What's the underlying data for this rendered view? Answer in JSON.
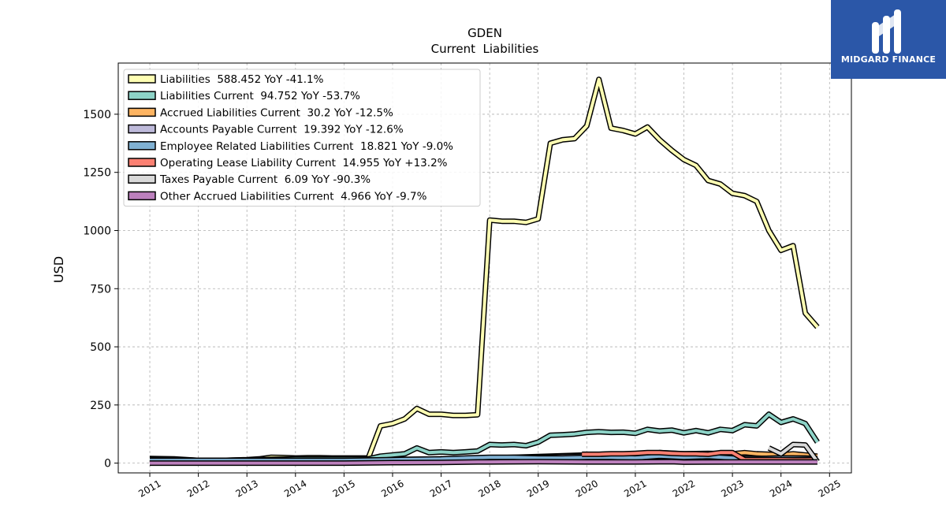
{
  "brand": {
    "name": "MIDGARD FINANCE"
  },
  "chart_data": {
    "type": "line",
    "title": "GDEN",
    "subtitle": "Current  Liabilities",
    "xlabel": "",
    "ylabel": "USD",
    "xlim": [
      2010.35,
      2025.45
    ],
    "ylim": [
      -42,
      1720
    ],
    "yticks": [
      0,
      250,
      500,
      750,
      1000,
      1250,
      1500
    ],
    "xticks": [
      "2011",
      "2012",
      "2013",
      "2014",
      "2015",
      "2016",
      "2017",
      "2018",
      "2019",
      "2020",
      "2021",
      "2022",
      "2023",
      "2024",
      "2025"
    ],
    "grid": true,
    "legend_position": "upper-left",
    "series": [
      {
        "name": "Liabilities",
        "legend_label": "Liabilities  588.452 YoY -41.1%",
        "color": "#ffffb3",
        "x": [
          2011.0,
          2011.5,
          2012.0,
          2012.5,
          2013.0,
          2013.25,
          2013.5,
          2013.75,
          2014.0,
          2014.25,
          2014.5,
          2014.75,
          2015.0,
          2015.25,
          2015.5,
          2015.75,
          2016.0,
          2016.25,
          2016.5,
          2016.75,
          2017.0,
          2017.25,
          2017.5,
          2017.75,
          2018.0,
          2018.25,
          2018.5,
          2018.75,
          2019.0,
          2019.25,
          2019.5,
          2019.75,
          2020.0,
          2020.25,
          2020.5,
          2020.75,
          2021.0,
          2021.25,
          2021.5,
          2021.75,
          2022.0,
          2022.25,
          2022.5,
          2022.75,
          2023.0,
          2023.25,
          2023.5,
          2023.75,
          2024.0,
          2024.25,
          2024.5,
          2024.75
        ],
        "y": [
          20,
          18,
          12,
          12,
          15,
          18,
          25,
          24,
          22,
          23,
          23,
          22,
          22,
          22,
          22,
          160,
          170,
          190,
          235,
          210,
          210,
          205,
          205,
          208,
          1045,
          1040,
          1040,
          1035,
          1050,
          1375,
          1390,
          1395,
          1450,
          1650,
          1440,
          1430,
          1415,
          1445,
          1390,
          1345,
          1305,
          1280,
          1215,
          1200,
          1160,
          1150,
          1125,
          1000,
          915,
          935,
          645,
          585
        ]
      },
      {
        "name": "Liabilities Current",
        "legend_label": "Liabilities Current  94.752 YoY -53.7%",
        "color": "#8dd3c7",
        "x": [
          2011.0,
          2011.5,
          2012.0,
          2012.5,
          2013.0,
          2013.5,
          2014.0,
          2014.5,
          2015.0,
          2015.5,
          2015.75,
          2016.0,
          2016.25,
          2016.5,
          2016.75,
          2017.0,
          2017.25,
          2017.5,
          2017.75,
          2018.0,
          2018.25,
          2018.5,
          2018.75,
          2019.0,
          2019.25,
          2019.5,
          2019.75,
          2020.0,
          2020.25,
          2020.5,
          2020.75,
          2021.0,
          2021.25,
          2021.5,
          2021.75,
          2022.0,
          2022.25,
          2022.5,
          2022.75,
          2023.0,
          2023.25,
          2023.5,
          2023.75,
          2024.0,
          2024.25,
          2024.5,
          2024.75
        ],
        "y": [
          18,
          16,
          12,
          12,
          14,
          16,
          18,
          18,
          18,
          18,
          30,
          35,
          40,
          65,
          45,
          48,
          45,
          48,
          52,
          80,
          78,
          80,
          75,
          90,
          120,
          122,
          125,
          132,
          135,
          132,
          133,
          128,
          145,
          138,
          142,
          130,
          140,
          130,
          145,
          140,
          165,
          160,
          210,
          175,
          190,
          170,
          90
        ]
      },
      {
        "name": "Accrued Liabilities Current",
        "legend_label": "Accrued Liabilities Current  30.2 YoY -12.5%",
        "color": "#fdb462",
        "x": [
          2011.0,
          2012.0,
          2013.0,
          2014.0,
          2015.0,
          2016.0,
          2017.0,
          2018.0,
          2019.0,
          2019.5,
          2020.0,
          2020.5,
          2021.0,
          2021.5,
          2022.0,
          2022.5,
          2023.0,
          2023.25,
          2023.5,
          2023.75,
          2024.0,
          2024.25,
          2024.5,
          2024.75
        ],
        "y": [
          15,
          10,
          12,
          12,
          12,
          15,
          18,
          22,
          28,
          32,
          35,
          38,
          35,
          45,
          40,
          42,
          40,
          45,
          40,
          38,
          35,
          40,
          35,
          30
        ]
      },
      {
        "name": "Accounts Payable Current",
        "legend_label": "Accounts Payable Current  19.392 YoY -12.6%",
        "color": "#bebada",
        "x": [
          2011.0,
          2012.0,
          2013.0,
          2014.0,
          2015.0,
          2016.0,
          2017.0,
          2018.0,
          2019.0,
          2019.5,
          2020.0,
          2020.5,
          2021.0,
          2021.5,
          2022.0,
          2022.5,
          2023.0,
          2023.5,
          2024.0,
          2024.5,
          2024.75
        ],
        "y": [
          10,
          8,
          8,
          8,
          8,
          10,
          12,
          15,
          25,
          28,
          30,
          28,
          25,
          30,
          28,
          25,
          22,
          20,
          22,
          22,
          19
        ]
      },
      {
        "name": "Employee Related Liabilities Current",
        "legend_label": "Employee Related Liabilities Current  18.821 YoY -9.0%",
        "color": "#80b1d3",
        "x": [
          2011.0,
          2012.0,
          2013.0,
          2014.0,
          2015.0,
          2016.0,
          2017.0,
          2017.5,
          2018.0,
          2018.5,
          2019.0,
          2019.5,
          2020.0,
          2020.5,
          2021.0,
          2021.5,
          2022.0,
          2022.5,
          2023.0,
          2023.5,
          2024.0,
          2024.5,
          2024.75
        ],
        "y": [
          12,
          12,
          12,
          12,
          12,
          15,
          18,
          22,
          25,
          25,
          22,
          22,
          25,
          25,
          22,
          30,
          25,
          28,
          22,
          20,
          22,
          20,
          19
        ]
      },
      {
        "name": "Operating Lease Liability Current",
        "legend_label": "Operating Lease Liability Current  14.955 YoY +13.2%",
        "color": "#fb8072",
        "x": [
          2019.9,
          2020.25,
          2020.5,
          2020.75,
          2021.0,
          2021.25,
          2021.5,
          2021.75,
          2022.0,
          2022.25,
          2022.5,
          2022.75,
          2023.0,
          2023.25,
          2023.5,
          2023.75,
          2024.0,
          2024.25,
          2024.5,
          2024.75
        ],
        "y": [
          38,
          38,
          40,
          40,
          42,
          45,
          45,
          42,
          40,
          40,
          38,
          45,
          45,
          15,
          15,
          15,
          15,
          14,
          14,
          15
        ]
      },
      {
        "name": "Taxes Payable Current",
        "legend_label": "Taxes Payable Current  6.09 YoY -90.3%",
        "color": "#d9d9d9",
        "x": [
          2023.75,
          2024.0,
          2024.25,
          2024.5,
          2024.75
        ],
        "y": [
          65,
          40,
          80,
          78,
          6
        ]
      },
      {
        "name": "Other Accrued Liabilities Current",
        "legend_label": "Other Accrued Liabilities Current  4.966 YoY -9.7%",
        "color": "#bc80bd",
        "x": [
          2011.0,
          2012.0,
          2013.0,
          2014.0,
          2015.0,
          2016.0,
          2017.0,
          2017.75,
          2018.0,
          2019.0,
          2020.0,
          2021.0,
          2021.75,
          2022.0,
          2023.0,
          2024.0,
          2024.75
        ],
        "y": [
          0,
          0,
          0,
          0,
          0,
          2,
          3,
          5,
          5,
          6,
          5,
          5,
          6,
          4,
          5,
          5,
          5
        ]
      }
    ]
  }
}
